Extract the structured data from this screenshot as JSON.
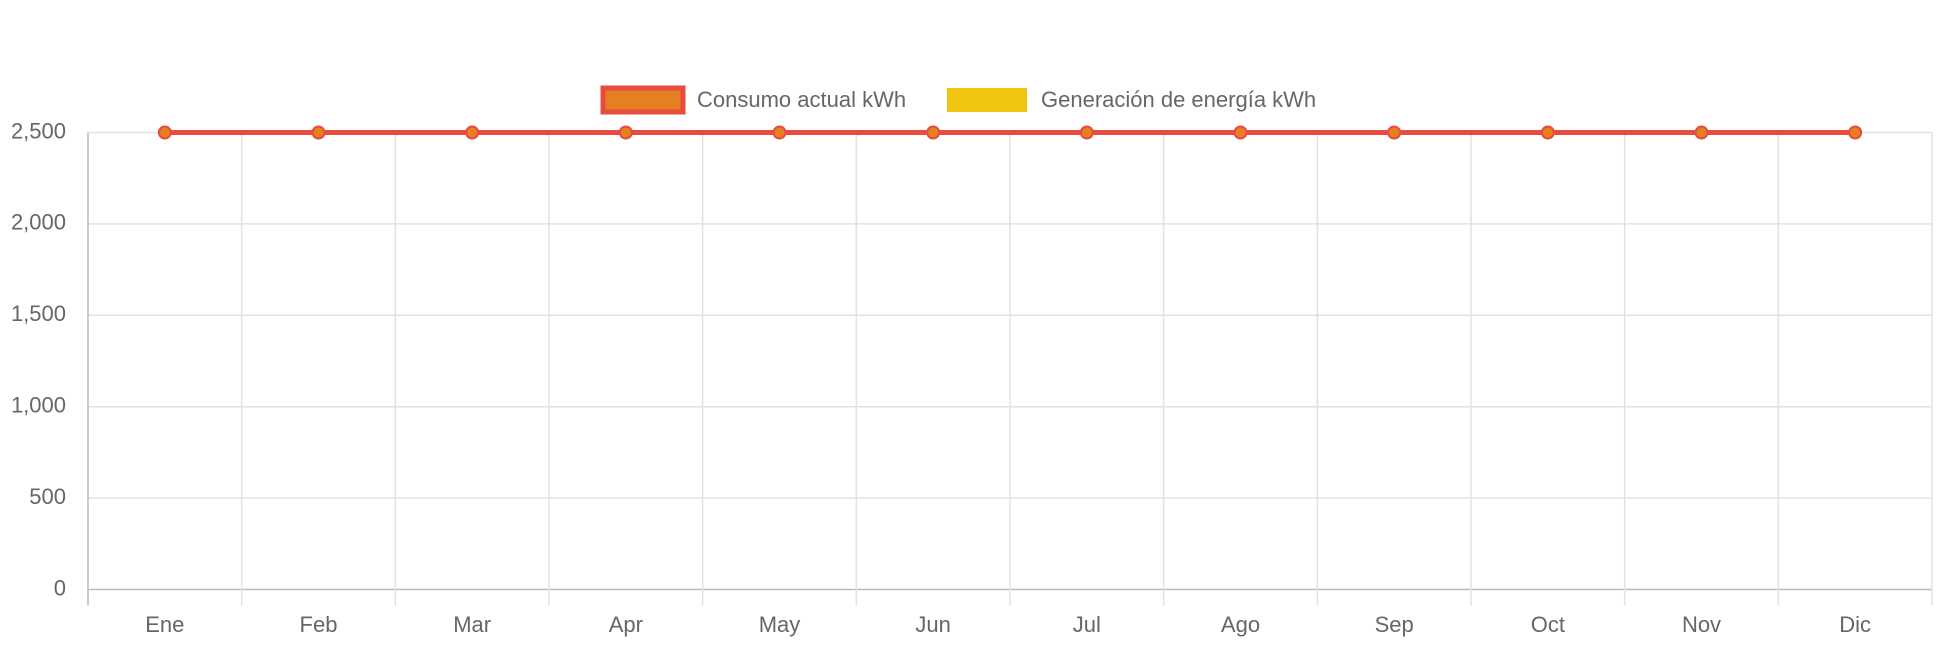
{
  "chart_data": {
    "type": "line",
    "categories": [
      "Ene",
      "Feb",
      "Mar",
      "Apr",
      "May",
      "Jun",
      "Jul",
      "Ago",
      "Sep",
      "Oct",
      "Nov",
      "Dic"
    ],
    "series": [
      {
        "name": "Consumo actual kWh",
        "color": "#e74c3c",
        "fill": "#e67e22",
        "values": [
          2500,
          2500,
          2500,
          2500,
          2500,
          2500,
          2500,
          2500,
          2500,
          2500,
          2500,
          2500
        ]
      },
      {
        "name": "Generación de energía kWh",
        "color": "#f1c40f",
        "fill": "#f1c40f",
        "values": [
          null,
          null,
          null,
          null,
          null,
          null,
          null,
          null,
          null,
          null,
          null,
          null
        ]
      }
    ],
    "ylim": [
      0,
      2500
    ],
    "yticks": [
      0,
      500,
      {
        "value": 1000,
        "label": "1,000"
      },
      {
        "value": 1500,
        "label": "1,500"
      },
      {
        "value": 2000,
        "label": "2,000"
      },
      {
        "value": 2500,
        "label": "2,500"
      }
    ],
    "grid": true,
    "legend": "top"
  }
}
